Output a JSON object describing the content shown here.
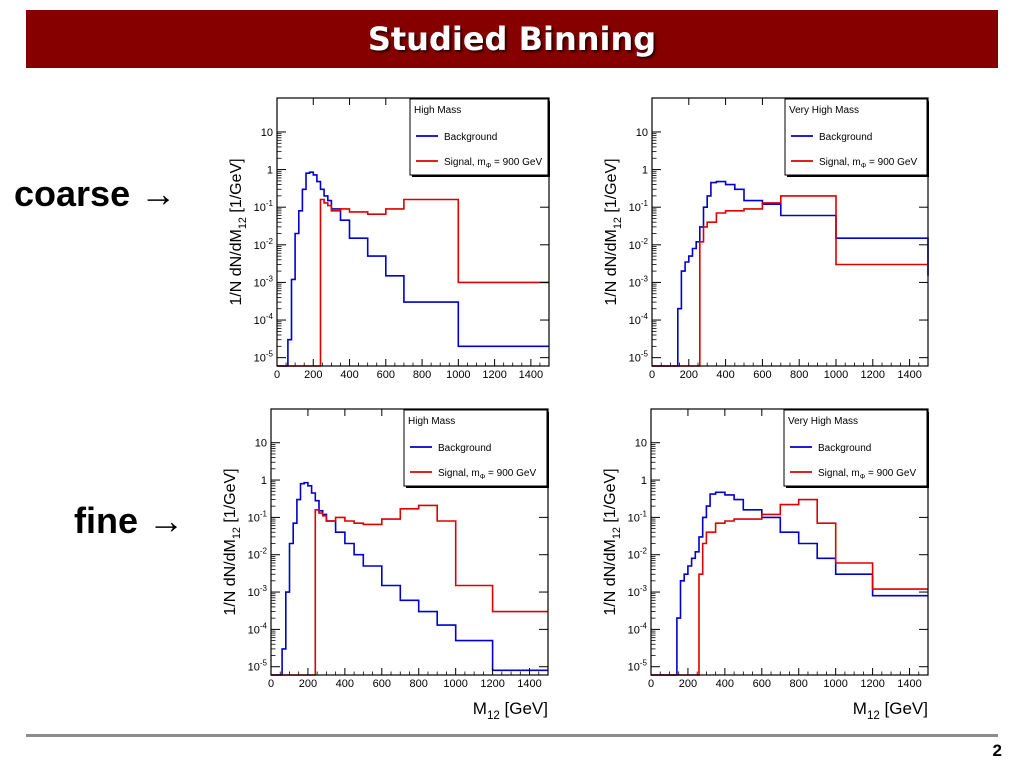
{
  "header": {
    "title": "Studied Binning"
  },
  "rows": {
    "coarse_label": "coarse →",
    "fine_label": "fine →"
  },
  "footer": {
    "page_number": "2"
  },
  "colors": {
    "title_bar": "#870000",
    "background_series": "#0000cc",
    "signal_series": "#dd0000"
  },
  "chart_data": [
    {
      "id": "coarse-high-mass",
      "type": "line",
      "step": true,
      "legend_title": "High Mass",
      "legend_position": "top-right",
      "ylabel": "1/N dN/dM12 [1/GeV]",
      "xlabel": "",
      "xlim": [
        0,
        1500
      ],
      "ylim": [
        6e-06,
        80
      ],
      "yscale": "log",
      "grid": false,
      "xticks": [
        0,
        200,
        400,
        600,
        800,
        1000,
        1200,
        1400
      ],
      "yticks": [
        "10^-5",
        "10^-4",
        "10^-3",
        "10^-2",
        "10^-1",
        "1",
        "10"
      ],
      "series": [
        {
          "name": "Background",
          "color": "#0000cc",
          "edges": [
            0,
            60,
            80,
            100,
            120,
            140,
            160,
            180,
            200,
            220,
            240,
            260,
            280,
            300,
            350,
            400,
            500,
            600,
            700,
            1000,
            1500
          ],
          "values": [
            null,
            3e-05,
            0.0012,
            0.02,
            0.08,
            0.3,
            0.8,
            0.85,
            0.72,
            0.48,
            0.3,
            0.2,
            0.15,
            0.09,
            0.045,
            0.015,
            0.005,
            0.0015,
            0.0003,
            2e-05
          ]
        },
        {
          "name": "Signal, mΦ = 900 GeV",
          "color": "#dd0000",
          "edges": [
            0,
            240,
            260,
            280,
            300,
            350,
            400,
            500,
            600,
            700,
            1000,
            1500
          ],
          "values": [
            null,
            0.16,
            0.13,
            0.11,
            0.08,
            0.09,
            0.075,
            0.065,
            0.09,
            0.16,
            0.001
          ]
        }
      ]
    },
    {
      "id": "coarse-very-high-mass",
      "type": "line",
      "step": true,
      "legend_title": "Very High Mass",
      "legend_position": "top-right",
      "ylabel": "1/N dN/dM12 [1/GeV]",
      "xlabel": "",
      "xlim": [
        0,
        1500
      ],
      "ylim": [
        6e-06,
        80
      ],
      "yscale": "log",
      "grid": false,
      "xticks": [
        0,
        200,
        400,
        600,
        800,
        1000,
        1200,
        1400
      ],
      "yticks": [
        "10^-5",
        "10^-4",
        "10^-3",
        "10^-2",
        "10^-1",
        "1",
        "10"
      ],
      "series": [
        {
          "name": "Background",
          "color": "#0000cc",
          "edges": [
            0,
            140,
            160,
            180,
            200,
            220,
            240,
            260,
            280,
            300,
            320,
            350,
            400,
            450,
            500,
            600,
            700,
            1000,
            1500
          ],
          "values": [
            null,
            0.0002,
            0.002,
            0.0035,
            0.005,
            0.008,
            0.012,
            0.03,
            0.1,
            0.2,
            0.45,
            0.48,
            0.4,
            0.3,
            0.15,
            0.12,
            0.06,
            0.015,
            0.0015
          ]
        },
        {
          "name": "Signal, mΦ = 900 GeV",
          "color": "#dd0000",
          "edges": [
            0,
            260,
            280,
            300,
            350,
            400,
            500,
            600,
            700,
            1000,
            1500
          ],
          "values": [
            null,
            0.012,
            0.03,
            0.04,
            0.07,
            0.08,
            0.09,
            0.13,
            0.2,
            0.003
          ]
        }
      ]
    },
    {
      "id": "fine-high-mass",
      "type": "line",
      "step": true,
      "legend_title": "High Mass",
      "legend_position": "top-right",
      "ylabel": "1/N dN/dM12 [1/GeV]",
      "xlabel": "M12 [GeV]",
      "xlim": [
        0,
        1500
      ],
      "ylim": [
        6e-06,
        80
      ],
      "yscale": "log",
      "grid": false,
      "xticks": [
        0,
        200,
        400,
        600,
        800,
        1000,
        1200,
        1400
      ],
      "yticks": [
        "10^-5",
        "10^-4",
        "10^-3",
        "10^-2",
        "10^-1",
        "1",
        "10"
      ],
      "series": [
        {
          "name": "Background",
          "color": "#0000cc",
          "edges": [
            0,
            60,
            80,
            100,
            120,
            140,
            160,
            180,
            200,
            220,
            240,
            260,
            280,
            300,
            350,
            400,
            450,
            500,
            600,
            700,
            800,
            900,
            1000,
            1200,
            1500
          ],
          "values": [
            null,
            3e-05,
            0.001,
            0.02,
            0.07,
            0.3,
            0.8,
            0.85,
            0.7,
            0.45,
            0.28,
            0.15,
            0.12,
            0.08,
            0.04,
            0.02,
            0.01,
            0.005,
            0.0015,
            0.0006,
            0.0003,
            0.00013,
            5e-05,
            8e-06
          ]
        },
        {
          "name": "Signal, mΦ = 900 GeV",
          "color": "#dd0000",
          "edges": [
            0,
            240,
            260,
            280,
            300,
            350,
            400,
            450,
            500,
            600,
            700,
            800,
            900,
            1000,
            1200,
            1500
          ],
          "values": [
            null,
            0.16,
            0.13,
            0.11,
            0.08,
            0.1,
            0.08,
            0.07,
            0.065,
            0.09,
            0.17,
            0.21,
            0.08,
            0.0015,
            0.0003
          ]
        }
      ]
    },
    {
      "id": "fine-very-high-mass",
      "type": "line",
      "step": true,
      "legend_title": "Very High Mass",
      "legend_position": "top-right",
      "ylabel": "1/N dN/dM12 [1/GeV]",
      "xlabel": "M12 [GeV]",
      "xlim": [
        0,
        1500
      ],
      "ylim": [
        6e-06,
        80
      ],
      "yscale": "log",
      "grid": false,
      "xticks": [
        0,
        200,
        400,
        600,
        800,
        1000,
        1200,
        1400
      ],
      "yticks": [
        "10^-5",
        "10^-4",
        "10^-3",
        "10^-2",
        "10^-1",
        "1",
        "10"
      ],
      "series": [
        {
          "name": "Background",
          "color": "#0000cc",
          "edges": [
            0,
            140,
            160,
            180,
            200,
            220,
            240,
            260,
            280,
            300,
            320,
            350,
            400,
            450,
            500,
            600,
            700,
            800,
            900,
            1000,
            1200,
            1500
          ],
          "values": [
            null,
            0.0002,
            0.002,
            0.003,
            0.005,
            0.008,
            0.012,
            0.03,
            0.1,
            0.2,
            0.42,
            0.47,
            0.4,
            0.3,
            0.16,
            0.1,
            0.04,
            0.02,
            0.008,
            0.003,
            0.0008
          ]
        },
        {
          "name": "Signal, mΦ = 900 GeV",
          "color": "#dd0000",
          "edges": [
            0,
            260,
            280,
            300,
            350,
            400,
            450,
            500,
            600,
            700,
            800,
            900,
            1000,
            1200,
            1500
          ],
          "values": [
            null,
            0.003,
            0.02,
            0.04,
            0.07,
            0.08,
            0.09,
            0.09,
            0.12,
            0.22,
            0.3,
            0.07,
            0.006,
            0.0012
          ]
        }
      ]
    }
  ]
}
